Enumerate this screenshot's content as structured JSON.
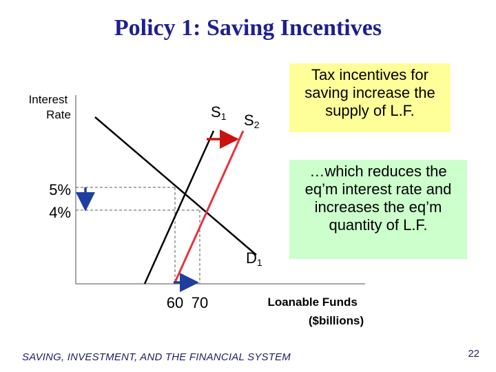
{
  "slide": {
    "title": "Policy 1:  Saving Incentives",
    "footer": "SAVING, INVESTMENT, AND THE FINANCIAL SYSTEM",
    "page_number": "22"
  },
  "callouts": {
    "top": "Tax incentives for saving increase the supply of L.F.",
    "bottom": "…which reduces the eq’m interest rate and increases the eq’m quantity of L.F."
  },
  "colors": {
    "title": "#1f1f8f",
    "demand": "#000000",
    "supply_old": "#000000",
    "supply_new": "#e8323c",
    "arrow_shift": "#cc1111",
    "arrow_blue": "#1f3f9f",
    "callout_yellow": "#ffff99",
    "callout_green": "#ccffcc"
  },
  "chart_data": {
    "type": "line",
    "ylabel_line1": "Interest",
    "ylabel_line2": "Rate",
    "xlabel_line1": "Loanable Funds",
    "xlabel_line2": "($billions)",
    "x_tick_labels": [
      "60",
      "70"
    ],
    "y_tick_labels": [
      "5%",
      "4%"
    ],
    "xlim": [
      0,
      110
    ],
    "ylim": [
      0,
      10
    ],
    "series": [
      {
        "name": "D1",
        "label_main": "D",
        "label_sub": "1",
        "points": [
          [
            0,
            8.8
          ],
          [
            82,
            1.2
          ]
        ]
      },
      {
        "name": "S1",
        "label_main": "S",
        "label_sub": "1",
        "points": [
          [
            35,
            0.0
          ],
          [
            70,
            9.1
          ]
        ]
      },
      {
        "name": "S2",
        "label_main": "S",
        "label_sub": "2",
        "points": [
          [
            50,
            0.0
          ],
          [
            85,
            9.1
          ]
        ]
      }
    ],
    "equilibria": [
      {
        "x": 60,
        "y": 5
      },
      {
        "x": 70,
        "y": 4
      }
    ],
    "annotations": {
      "supply_shift": {
        "from_x": 72,
        "to_x": 87,
        "y": 8.3
      },
      "rate_fall": {
        "x": 5,
        "from_y": 4.6,
        "to_y": 2.9
      },
      "quantity_rise": {
        "y": 0.45,
        "from_x": 60,
        "to_x": 70
      }
    }
  }
}
